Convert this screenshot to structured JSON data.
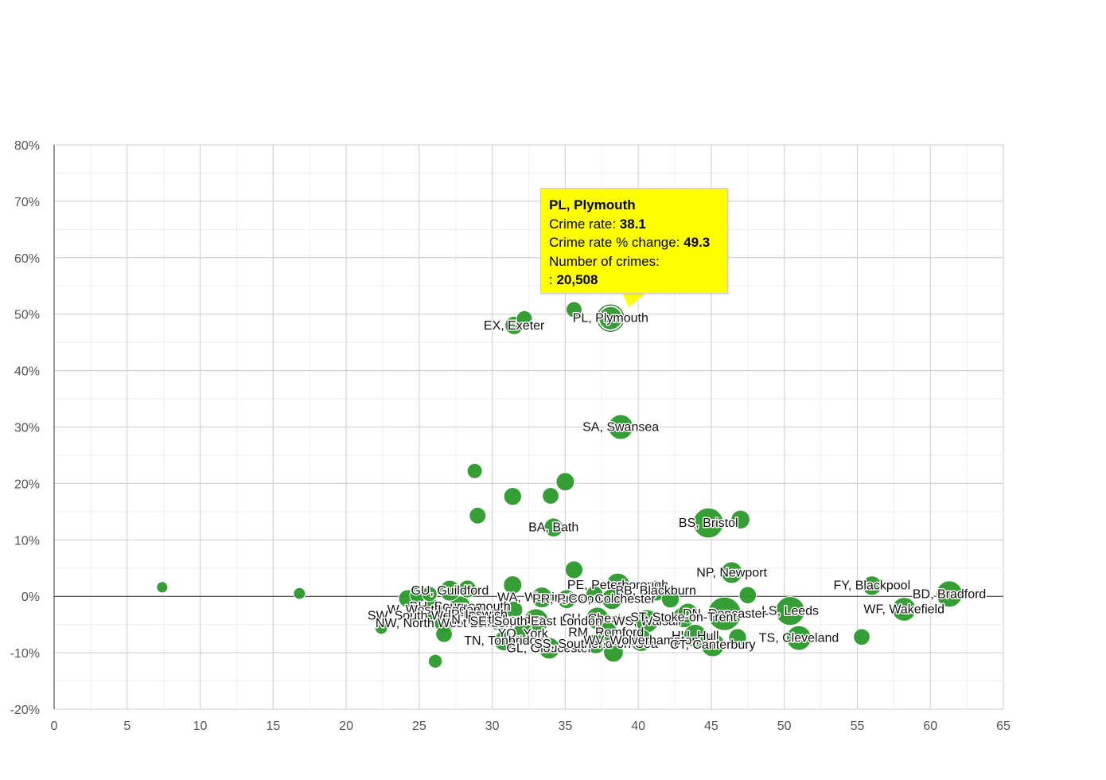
{
  "chart_data": {
    "type": "scatter",
    "title": "",
    "xlabel": "",
    "ylabel": "",
    "xlim": [
      0,
      65
    ],
    "ylim": [
      -20,
      80
    ],
    "x_ticks": [
      "0",
      "5",
      "10",
      "15",
      "20",
      "25",
      "30",
      "35",
      "40",
      "45",
      "50",
      "55",
      "60",
      "65"
    ],
    "y_ticks": [
      "80%",
      "70%",
      "60%",
      "50%",
      "40%",
      "30%",
      "20%",
      "10%",
      "0%",
      "-10%",
      "-20%"
    ],
    "grid": true,
    "bubble_color": "#2a9a2a",
    "points": [
      {
        "label": "PL, Plymouth",
        "x": 38.1,
        "y": 49.3,
        "size": 20508
      },
      {
        "label": "EX, Exeter",
        "x": 31.5,
        "y": 48.0,
        "size": 9000
      },
      {
        "label": "",
        "x": 32.2,
        "y": 49.2,
        "size": 5000
      },
      {
        "label": "",
        "x": 35.6,
        "y": 50.8,
        "size": 5000
      },
      {
        "label": "SA, Swansea",
        "x": 38.8,
        "y": 30.0,
        "size": 25000
      },
      {
        "label": "",
        "x": 28.8,
        "y": 22.2,
        "size": 4000
      },
      {
        "label": "",
        "x": 35.0,
        "y": 20.3,
        "size": 9000
      },
      {
        "label": "",
        "x": 31.4,
        "y": 17.7,
        "size": 8000
      },
      {
        "label": "",
        "x": 34.0,
        "y": 17.8,
        "size": 6000
      },
      {
        "label": "",
        "x": 29.0,
        "y": 14.3,
        "size": 6000
      },
      {
        "label": "BA, Bath",
        "x": 34.2,
        "y": 12.2,
        "size": 10000
      },
      {
        "label": "BS, Bristol",
        "x": 44.8,
        "y": 13.0,
        "size": 45000
      },
      {
        "label": "",
        "x": 47.0,
        "y": 13.6,
        "size": 10000
      },
      {
        "label": "NP, Newport",
        "x": 46.4,
        "y": 4.2,
        "size": 16000
      },
      {
        "label": "",
        "x": 35.6,
        "y": 4.7,
        "size": 8000
      },
      {
        "label": "",
        "x": 7.4,
        "y": 1.6,
        "size": 600
      },
      {
        "label": "",
        "x": 16.8,
        "y": 0.5,
        "size": 900
      },
      {
        "label": "FY, Blackpool",
        "x": 56.0,
        "y": 1.9,
        "size": 11000
      },
      {
        "label": "BD, Bradford",
        "x": 61.3,
        "y": 0.4,
        "size": 30000
      },
      {
        "label": "WF, Wakefield",
        "x": 58.2,
        "y": -2.3,
        "size": 22000
      },
      {
        "label": "LS, Leeds",
        "x": 50.4,
        "y": -2.6,
        "size": 40000
      },
      {
        "label": "TS, Cleveland",
        "x": 51.0,
        "y": -7.4,
        "size": 25000
      },
      {
        "label": "",
        "x": 55.3,
        "y": -7.2,
        "size": 6000
      },
      {
        "label": "",
        "x": 47.5,
        "y": 0.2,
        "size": 7000
      },
      {
        "label": "GU, Guildford",
        "x": 27.1,
        "y": 1.0,
        "size": 14000
      },
      {
        "label": "",
        "x": 25.7,
        "y": 0.4,
        "size": 4000
      },
      {
        "label": "",
        "x": 28.3,
        "y": 1.3,
        "size": 8000
      },
      {
        "label": "",
        "x": 31.4,
        "y": 2.0,
        "size": 9000
      },
      {
        "label": "PE, Peterborough",
        "x": 38.6,
        "y": 2.0,
        "size": 22000
      },
      {
        "label": "BB, Blackburn",
        "x": 41.2,
        "y": 1.0,
        "size": 14000
      },
      {
        "label": "",
        "x": 24.2,
        "y": -0.4,
        "size": 8000
      },
      {
        "label": "",
        "x": 24.9,
        "y": 0.2,
        "size": 5000
      },
      {
        "label": "WA, Warrington",
        "x": 33.4,
        "y": -0.2,
        "size": 14000
      },
      {
        "label": "PR, Preston",
        "x": 35.1,
        "y": -0.5,
        "size": 10000
      },
      {
        "label": "CO, Colchester",
        "x": 38.2,
        "y": -0.5,
        "size": 14000
      },
      {
        "label": "",
        "x": 37.0,
        "y": 0.3,
        "size": 7000
      },
      {
        "label": "",
        "x": 42.2,
        "y": -0.5,
        "size": 8000
      },
      {
        "label": "BH, Bournemouth",
        "x": 27.8,
        "y": -1.8,
        "size": 15000
      },
      {
        "label": "W, West London",
        "x": 26.0,
        "y": -2.4,
        "size": 14000
      },
      {
        "label": "SW, South West London",
        "x": 26.2,
        "y": -3.4,
        "size": 16000
      },
      {
        "label": "IP, Ipswich",
        "x": 29.0,
        "y": -3.2,
        "size": 9000
      },
      {
        "label": "",
        "x": 31.5,
        "y": -2.4,
        "size": 7000
      },
      {
        "label": "DN, Doncaster",
        "x": 45.9,
        "y": -3.1,
        "size": 60000
      },
      {
        "label": "",
        "x": 43.4,
        "y": -3.0,
        "size": 12000
      },
      {
        "label": "CH, Chester",
        "x": 37.2,
        "y": -3.9,
        "size": 18000
      },
      {
        "label": "WS, Walsall",
        "x": 40.6,
        "y": -4.4,
        "size": 20000
      },
      {
        "label": "ST, Stoke-on-Trent",
        "x": 43.1,
        "y": -3.7,
        "size": 15000
      },
      {
        "label": "NW, North West London",
        "x": 26.7,
        "y": -4.8,
        "size": 10000
      },
      {
        "label": "N, North London",
        "x": 30.4,
        "y": -4.1,
        "size": 16000
      },
      {
        "label": "SE, South East London",
        "x": 33.0,
        "y": -4.4,
        "size": 25000
      },
      {
        "label": "",
        "x": 22.4,
        "y": -5.6,
        "size": 1500
      },
      {
        "label": "",
        "x": 26.7,
        "y": -6.7,
        "size": 6000
      },
      {
        "label": "RM, Romford",
        "x": 37.8,
        "y": -6.4,
        "size": 18000
      },
      {
        "label": "YO, York",
        "x": 32.1,
        "y": -6.6,
        "size": 15000
      },
      {
        "label": "HU, Hull",
        "x": 43.9,
        "y": -7.0,
        "size": 20000
      },
      {
        "label": "TN, Tonbridge",
        "x": 30.8,
        "y": -7.9,
        "size": 12000
      },
      {
        "label": "GL, Gloucester",
        "x": 33.9,
        "y": -9.2,
        "size": 16000
      },
      {
        "label": "SS, Southend-on-Sea",
        "x": 37.1,
        "y": -8.4,
        "size": 12000
      },
      {
        "label": "WV, Wolverhampton",
        "x": 40.2,
        "y": -7.8,
        "size": 18000
      },
      {
        "label": "CT, Canterbury",
        "x": 45.1,
        "y": -8.6,
        "size": 22000
      },
      {
        "label": "",
        "x": 46.8,
        "y": -7.3,
        "size": 8000
      },
      {
        "label": "",
        "x": 38.3,
        "y": -9.9,
        "size": 12000
      },
      {
        "label": "",
        "x": 26.1,
        "y": -11.5,
        "size": 2500
      }
    ]
  },
  "tooltip": {
    "title": "PL, Plymouth",
    "rate_label": "Crime rate: ",
    "rate_value": "38.1",
    "change_label": "Crime rate % change: ",
    "change_value": "49.3",
    "crimes_label": "Number of crimes:",
    "crimes_prefix": ": ",
    "crimes_value": "20,508"
  }
}
